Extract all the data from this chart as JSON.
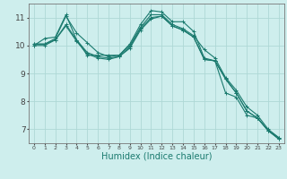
{
  "background_color": "#ceeeed",
  "grid_color": "#aed8d6",
  "line_color": "#1a7a6e",
  "xlabel": "Humidex (Indice chaleur)",
  "xlabel_fontsize": 7,
  "yticks": [
    7,
    8,
    9,
    10,
    11
  ],
  "xticks": [
    0,
    1,
    2,
    3,
    4,
    5,
    6,
    7,
    8,
    9,
    10,
    11,
    12,
    13,
    14,
    15,
    16,
    17,
    18,
    19,
    20,
    21,
    22,
    23
  ],
  "xlim": [
    -0.5,
    23.5
  ],
  "ylim": [
    6.5,
    11.5
  ],
  "series": [
    [
      10.0,
      10.25,
      10.3,
      11.1,
      10.2,
      9.65,
      9.65,
      9.65,
      9.65,
      10.05,
      10.75,
      11.25,
      11.2,
      10.85,
      10.85,
      10.5,
      9.55,
      9.45,
      8.3,
      8.15,
      7.5,
      7.4,
      6.95,
      6.7
    ],
    [
      10.05,
      10.05,
      10.25,
      11.05,
      10.45,
      10.1,
      9.75,
      9.6,
      9.65,
      10.0,
      10.65,
      11.1,
      11.1,
      10.75,
      10.6,
      10.35,
      9.85,
      9.55,
      8.85,
      8.4,
      7.8,
      7.5,
      7.0,
      6.7
    ],
    [
      10.05,
      10.05,
      10.2,
      10.7,
      10.15,
      9.7,
      9.55,
      9.5,
      9.6,
      9.9,
      10.55,
      10.95,
      11.05,
      10.7,
      10.55,
      10.3,
      9.5,
      9.45,
      8.8,
      8.3,
      7.65,
      7.4,
      6.95,
      6.65
    ],
    [
      10.0,
      10.0,
      10.2,
      10.75,
      10.2,
      9.75,
      9.6,
      9.55,
      9.6,
      9.95,
      10.6,
      11.0,
      11.05,
      10.7,
      10.55,
      10.3,
      9.5,
      9.45,
      8.8,
      8.3,
      7.65,
      7.4,
      6.95,
      6.65
    ]
  ]
}
